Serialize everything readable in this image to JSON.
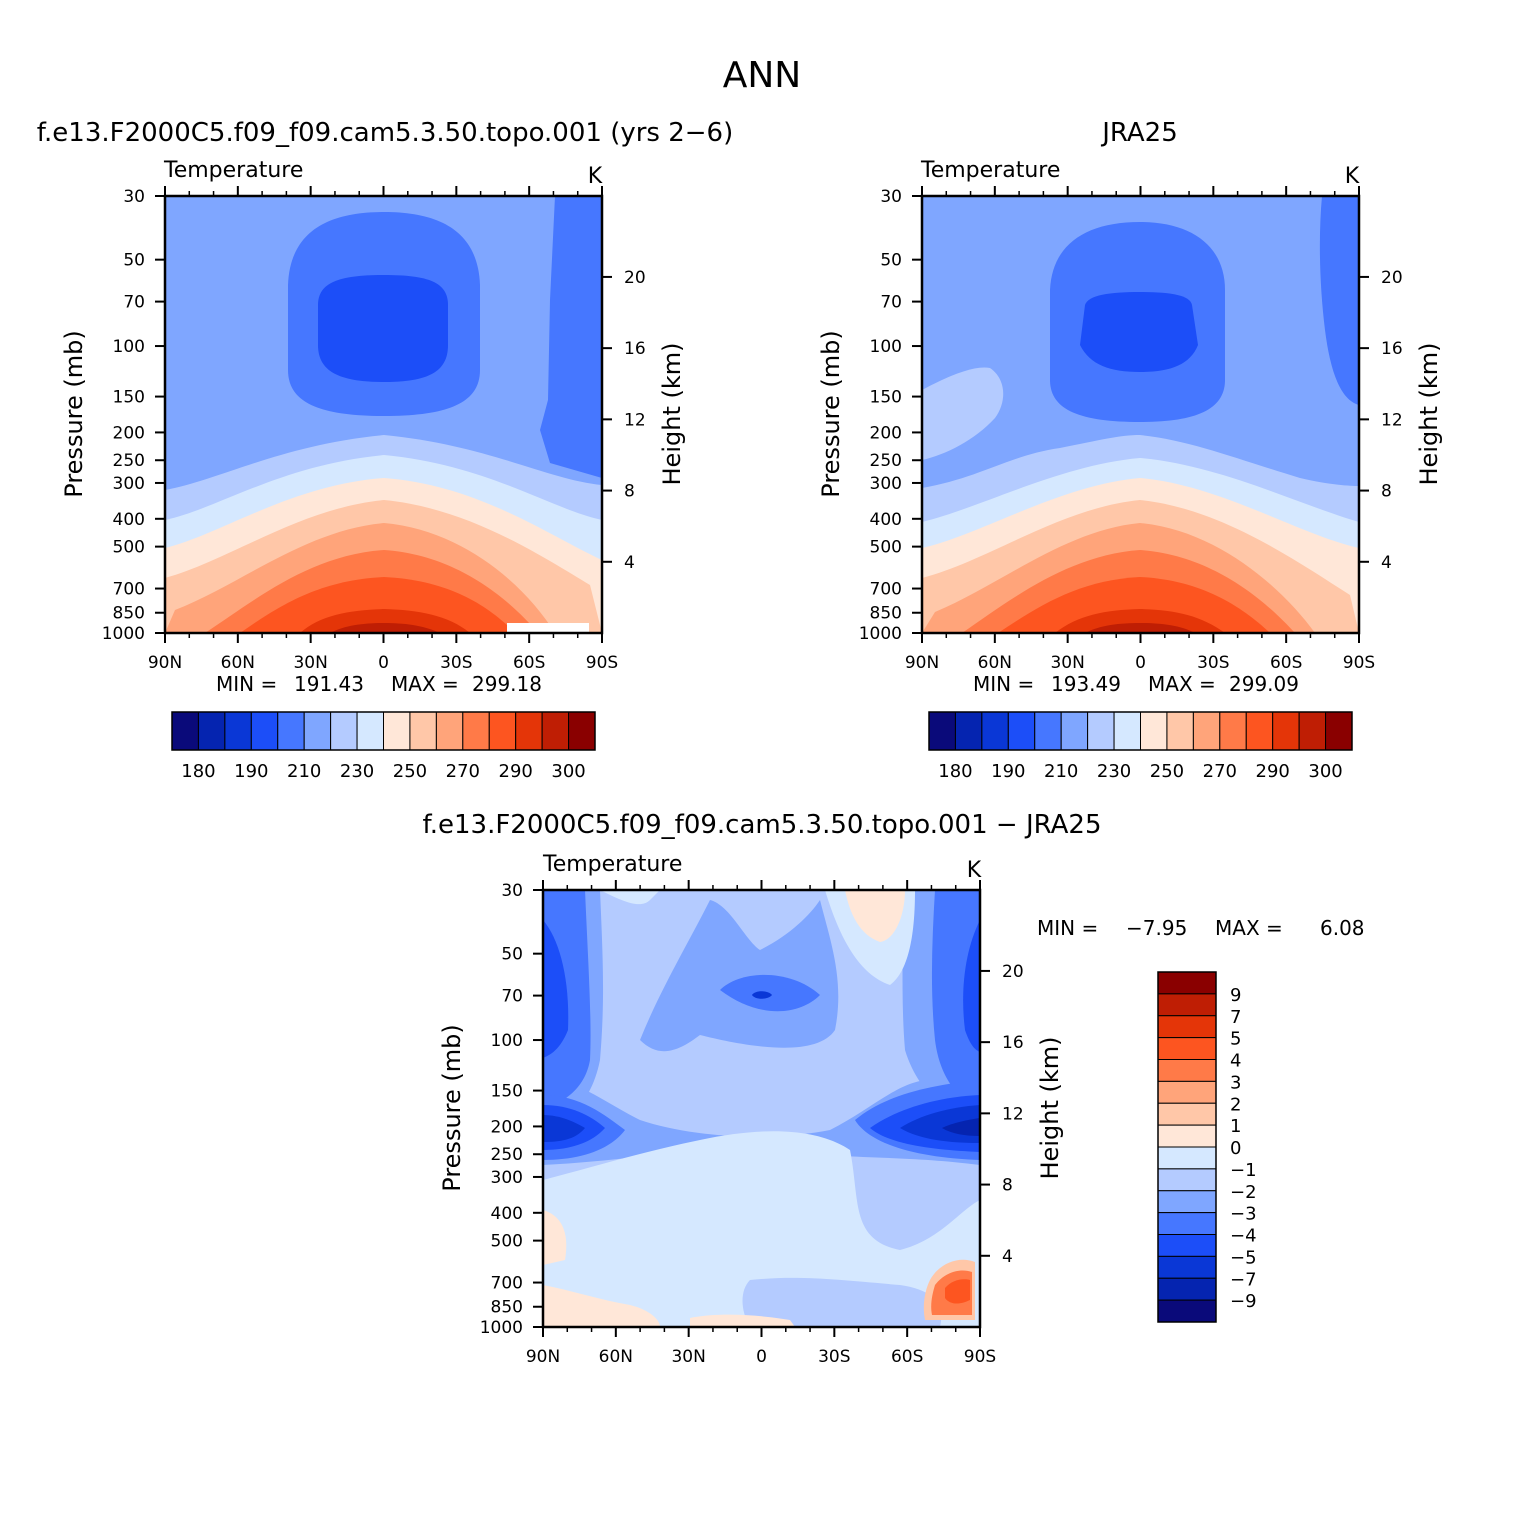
{
  "page_title": "ANN",
  "chart_data": [
    {
      "id": "model",
      "type": "heatmap",
      "title": "f.e13.F2000C5.f09_f09.cam5.3.50.topo.001 (yrs 2−6)",
      "subtitle_left": "Temperature",
      "units": "K",
      "ylabel": "Pressure (mb)",
      "ylabel_right": "Height (km)",
      "x_tick_labels": [
        "90N",
        "60N",
        "30N",
        "0",
        "30S",
        "60S",
        "90S"
      ],
      "xlim": [
        -90,
        90
      ],
      "y_tick_labels": [
        "30",
        "50",
        "70",
        "100",
        "150",
        "200",
        "250",
        "300",
        "400",
        "500",
        "700",
        "850",
        "1000"
      ],
      "ylim": [
        1000,
        30
      ],
      "y_right_tick_labels": [
        "20",
        "16",
        "12",
        "8",
        "4"
      ],
      "min_label": "MIN =",
      "min_value": "191.43",
      "max_label": "MAX =",
      "max_value": "299.18",
      "colorbar": {
        "labels": [
          "180",
          "190",
          "210",
          "230",
          "250",
          "270",
          "290",
          "300"
        ],
        "levels": [
          180,
          185,
          190,
          200,
          210,
          220,
          230,
          240,
          250,
          260,
          270,
          280,
          290,
          295,
          300
        ],
        "colors": [
          "#0a0a7a",
          "#0524b0",
          "#0a37d6",
          "#1c4ef8",
          "#4677ff",
          "#7fa6ff",
          "#b4cbff",
          "#d5e8ff",
          "#ffe7d8",
          "#ffc7a8",
          "#ffa47a",
          "#ff7a48",
          "#fd5520",
          "#e43508",
          "#bf1e04",
          "#8a0000"
        ]
      }
    },
    {
      "id": "obs",
      "type": "heatmap",
      "title": "JRA25",
      "subtitle_left": "Temperature",
      "units": "K",
      "ylabel": "Pressure (mb)",
      "ylabel_right": "Height (km)",
      "x_tick_labels": [
        "90N",
        "60N",
        "30N",
        "0",
        "30S",
        "60S",
        "90S"
      ],
      "xlim": [
        -90,
        90
      ],
      "y_tick_labels": [
        "30",
        "50",
        "70",
        "100",
        "150",
        "200",
        "250",
        "300",
        "400",
        "500",
        "700",
        "850",
        "1000"
      ],
      "ylim": [
        1000,
        30
      ],
      "y_right_tick_labels": [
        "20",
        "16",
        "12",
        "8",
        "4"
      ],
      "min_label": "MIN =",
      "min_value": "193.49",
      "max_label": "MAX =",
      "max_value": "299.09",
      "colorbar": {
        "labels": [
          "180",
          "190",
          "210",
          "230",
          "250",
          "270",
          "290",
          "300"
        ],
        "levels": [
          180,
          185,
          190,
          200,
          210,
          220,
          230,
          240,
          250,
          260,
          270,
          280,
          290,
          295,
          300
        ],
        "colors": [
          "#0a0a7a",
          "#0524b0",
          "#0a37d6",
          "#1c4ef8",
          "#4677ff",
          "#7fa6ff",
          "#b4cbff",
          "#d5e8ff",
          "#ffe7d8",
          "#ffc7a8",
          "#ffa47a",
          "#ff7a48",
          "#fd5520",
          "#e43508",
          "#bf1e04",
          "#8a0000"
        ]
      }
    },
    {
      "id": "diff",
      "type": "heatmap",
      "title": "f.e13.F2000C5.f09_f09.cam5.3.50.topo.001 − JRA25",
      "subtitle_left": "Temperature",
      "units": "K",
      "ylabel": "Pressure (mb)",
      "ylabel_right": "Height (km)",
      "x_tick_labels": [
        "90N",
        "60N",
        "30N",
        "0",
        "30S",
        "60S",
        "90S"
      ],
      "xlim": [
        -90,
        90
      ],
      "y_tick_labels": [
        "30",
        "50",
        "70",
        "100",
        "150",
        "200",
        "250",
        "300",
        "400",
        "500",
        "700",
        "850",
        "1000"
      ],
      "ylim": [
        1000,
        30
      ],
      "y_right_tick_labels": [
        "20",
        "16",
        "12",
        "8",
        "4"
      ],
      "min_label": "MIN =",
      "min_value": "−7.95",
      "max_label": "MAX =",
      "max_value": "6.08",
      "colorbar": {
        "labels": [
          "9",
          "7",
          "5",
          "4",
          "3",
          "2",
          "1",
          "0",
          "−1",
          "−2",
          "−3",
          "−4",
          "−5",
          "−7",
          "−9"
        ],
        "colors_top_to_bottom": [
          "#8a0000",
          "#bf1e04",
          "#e43508",
          "#fd5520",
          "#ff7a48",
          "#ffa47a",
          "#ffc7a8",
          "#ffe7d8",
          "#d5e8ff",
          "#b4cbff",
          "#7fa6ff",
          "#4677ff",
          "#1c4ef8",
          "#0a37d6",
          "#0524b0",
          "#0a0a7a"
        ]
      }
    }
  ]
}
